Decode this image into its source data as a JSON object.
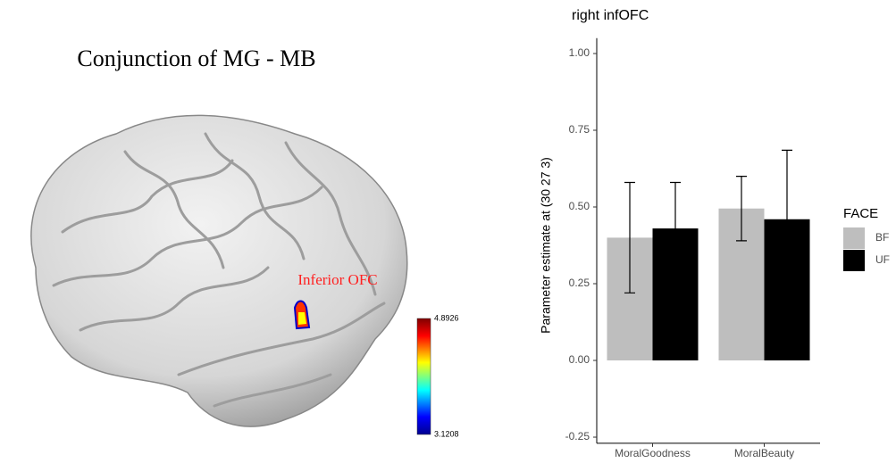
{
  "brain_panel": {
    "title": "Conjunction of MG - MB",
    "annotation": "Inferior OFC",
    "colorbar": {
      "max": 4.8926,
      "min": 3.1208
    }
  },
  "chart_data": {
    "type": "bar",
    "title": "right infOFC",
    "y_label": "Parameter estimate at (30 27 3)",
    "categories": [
      "MoralGoodness",
      "MoralBeauty"
    ],
    "series": [
      {
        "name": "BF",
        "color": "#bebebe",
        "values": [
          0.4,
          0.495
        ],
        "errors": [
          0.18,
          0.105
        ]
      },
      {
        "name": "UF",
        "color": "#000000",
        "values": [
          0.43,
          0.46
        ],
        "errors": [
          0.15,
          0.225
        ]
      }
    ],
    "ylim": [
      -0.27,
      1.05
    ],
    "yticks": [
      -0.25,
      {
        "value": 0,
        "label": "0.00"
      },
      0.25,
      {
        "value": 0.5,
        "label": "0.50"
      },
      0.75,
      {
        "value": 1,
        "label": "1.00"
      }
    ],
    "legend_title": "FACE",
    "legend_position": "right",
    "grid": false
  }
}
